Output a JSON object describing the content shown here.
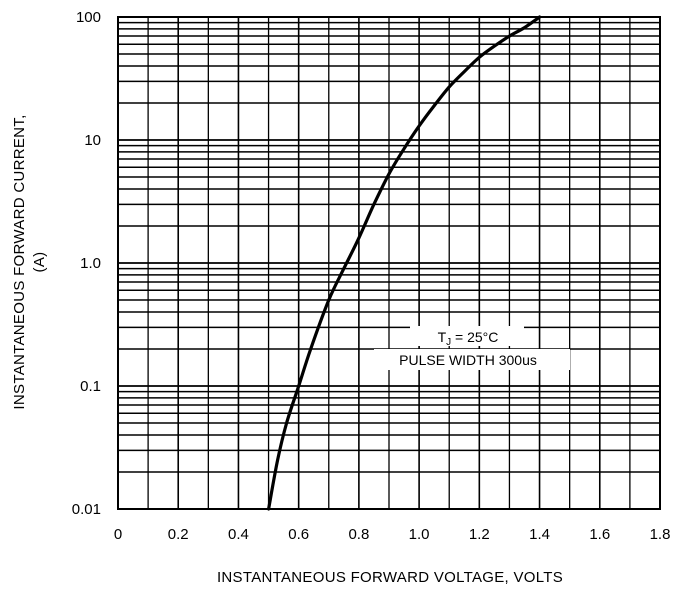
{
  "chart_data": {
    "type": "line",
    "x_scale": "linear",
    "y_scale": "log",
    "grid": true,
    "xlim": [
      0,
      1.8
    ],
    "ylim": [
      0.01,
      100
    ],
    "x_ticks": [
      0,
      0.2,
      0.4,
      0.6,
      0.8,
      1.0,
      1.2,
      1.4,
      1.6,
      1.8
    ],
    "x_tick_labels": [
      "0",
      "0.2",
      "0.4",
      "0.6",
      "0.8",
      "1.0",
      "1.2",
      "1.4",
      "1.6",
      "1.8"
    ],
    "y_ticks": [
      0.01,
      0.1,
      1,
      10,
      100
    ],
    "y_tick_labels": [
      "0.01",
      "0.1",
      "1.0",
      "10",
      "100"
    ],
    "xlabel": "INSTANTANEOUS FORWARD VOLTAGE, VOLTS",
    "ylabel_line1": "INSTANTANEOUS FORWARD CURRENT,",
    "ylabel_line2": "(A)",
    "annotation": {
      "line1_main": "T",
      "line1_sub": "J",
      "line1_rest": " = 25°C",
      "line2": "PULSE WIDTH 300us"
    },
    "series": [
      {
        "x": [
          0.5,
          0.53,
          0.56,
          0.6,
          0.64,
          0.7,
          0.75,
          0.8,
          0.85,
          0.9,
          0.95,
          1.0,
          1.05,
          1.1,
          1.15,
          1.2,
          1.25,
          1.3,
          1.35,
          1.4
        ],
        "y": [
          0.01,
          0.025,
          0.05,
          0.1,
          0.2,
          0.5,
          0.9,
          1.6,
          3.0,
          5.3,
          8.5,
          13,
          19,
          27,
          36,
          47,
          58,
          70,
          82,
          100
        ]
      }
    ]
  }
}
